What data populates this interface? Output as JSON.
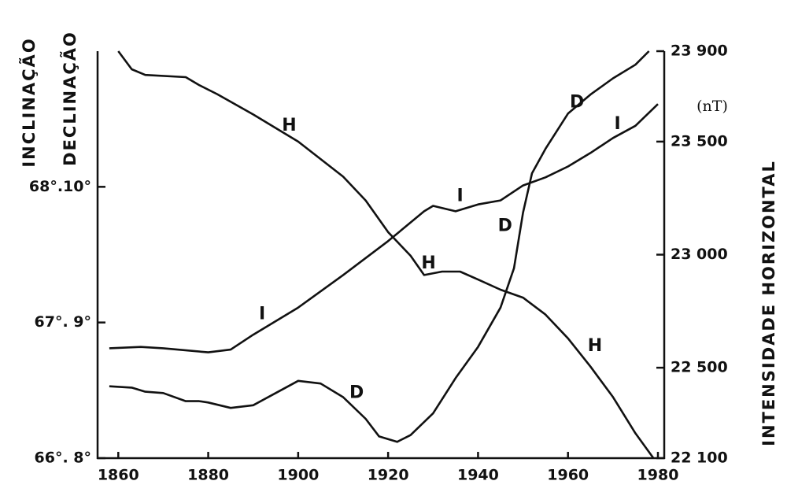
{
  "chart_data": {
    "type": "line",
    "ylabel": "INCLINAÇÃO",
    "ydlabel": "DECLINAÇÃO",
    "y2label": "INTENSIDADE HORIZONTAL",
    "y2unit": "(nT)",
    "xlim": [
      1855.4,
      1981.4
    ],
    "xticks": [
      1860,
      1880,
      1900,
      1920,
      1940,
      1960,
      1980
    ],
    "ylim": [
      66,
      69
    ],
    "yticks": [
      {
        "value": 66,
        "label": "66°. 8°"
      },
      {
        "value": 67,
        "label": "67°. 9°"
      },
      {
        "value": 68,
        "label": "68°.10°"
      }
    ],
    "ydlim": [
      8,
      11
    ],
    "y2lim": [
      22100,
      23900
    ],
    "y2ticks": [
      {
        "value": 22100,
        "label": "22 100"
      },
      {
        "value": 22500,
        "label": "22 500"
      },
      {
        "value": 23000,
        "label": "23 000"
      },
      {
        "value": 23500,
        "label": "23 500"
      },
      {
        "value": 23900,
        "label": "23 900"
      }
    ],
    "color": "#111111",
    "series": [
      {
        "name": "H",
        "axis": "y2",
        "x": [
          1860,
          1863,
          1866,
          1875,
          1878,
          1882,
          1890,
          1900,
          1910,
          1915,
          1920,
          1925,
          1928,
          1932,
          1936,
          1940,
          1945,
          1950,
          1955,
          1960,
          1965,
          1970,
          1975,
          1979
        ],
        "values": [
          23900,
          23820,
          23795,
          23785,
          23750,
          23710,
          23620,
          23500,
          23345,
          23240,
          23100,
          22995,
          22910,
          22925,
          22925,
          22890,
          22845,
          22810,
          22735,
          22630,
          22505,
          22370,
          22210,
          22100
        ]
      },
      {
        "name": "I",
        "axis": "y",
        "x": [
          1858,
          1865,
          1870,
          1880,
          1885,
          1890,
          1900,
          1910,
          1920,
          1928,
          1930,
          1935,
          1940,
          1945,
          1950,
          1955,
          1960,
          1965,
          1970,
          1975,
          1980
        ],
        "values": [
          66.81,
          66.82,
          66.81,
          66.78,
          66.8,
          66.91,
          67.11,
          67.35,
          67.6,
          67.82,
          67.86,
          67.82,
          67.87,
          67.9,
          68.01,
          68.07,
          68.15,
          68.25,
          68.36,
          68.45,
          68.61
        ]
      },
      {
        "name": "D",
        "axis": "yd",
        "x": [
          1858,
          1863,
          1866,
          1870,
          1875,
          1878,
          1880,
          1885,
          1890,
          1895,
          1900,
          1905,
          1910,
          1915,
          1918,
          1922,
          1925,
          1930,
          1935,
          1940,
          1945,
          1948,
          1950,
          1952,
          1955,
          1960,
          1965,
          1970,
          1975,
          1978
        ],
        "values": [
          8.53,
          8.52,
          8.49,
          8.48,
          8.42,
          8.42,
          8.41,
          8.37,
          8.39,
          8.48,
          8.57,
          8.55,
          8.45,
          8.29,
          8.16,
          8.12,
          8.17,
          8.33,
          8.59,
          8.82,
          9.11,
          9.4,
          9.81,
          10.1,
          10.28,
          10.54,
          10.68,
          10.8,
          10.9,
          11.0
        ]
      }
    ],
    "annotations": [
      {
        "text": "H",
        "series": 0,
        "x": 1898,
        "y": 23570
      },
      {
        "text": "H",
        "series": 0,
        "x": 1929,
        "y": 22960
      },
      {
        "text": "H",
        "series": 0,
        "x": 1966,
        "y": 22595
      },
      {
        "text": "I",
        "series": 1,
        "x": 1892,
        "y": 67.06
      },
      {
        "text": "I",
        "series": 1,
        "x": 1936,
        "y": 67.93
      },
      {
        "text": "I",
        "series": 1,
        "x": 1971,
        "y": 68.46
      },
      {
        "text": "D",
        "series": 2,
        "x": 1913,
        "y": 8.48
      },
      {
        "text": "D",
        "series": 2,
        "x": 1946,
        "y": 9.71
      },
      {
        "text": "D",
        "series": 2,
        "x": 1962,
        "y": 10.62
      }
    ]
  }
}
